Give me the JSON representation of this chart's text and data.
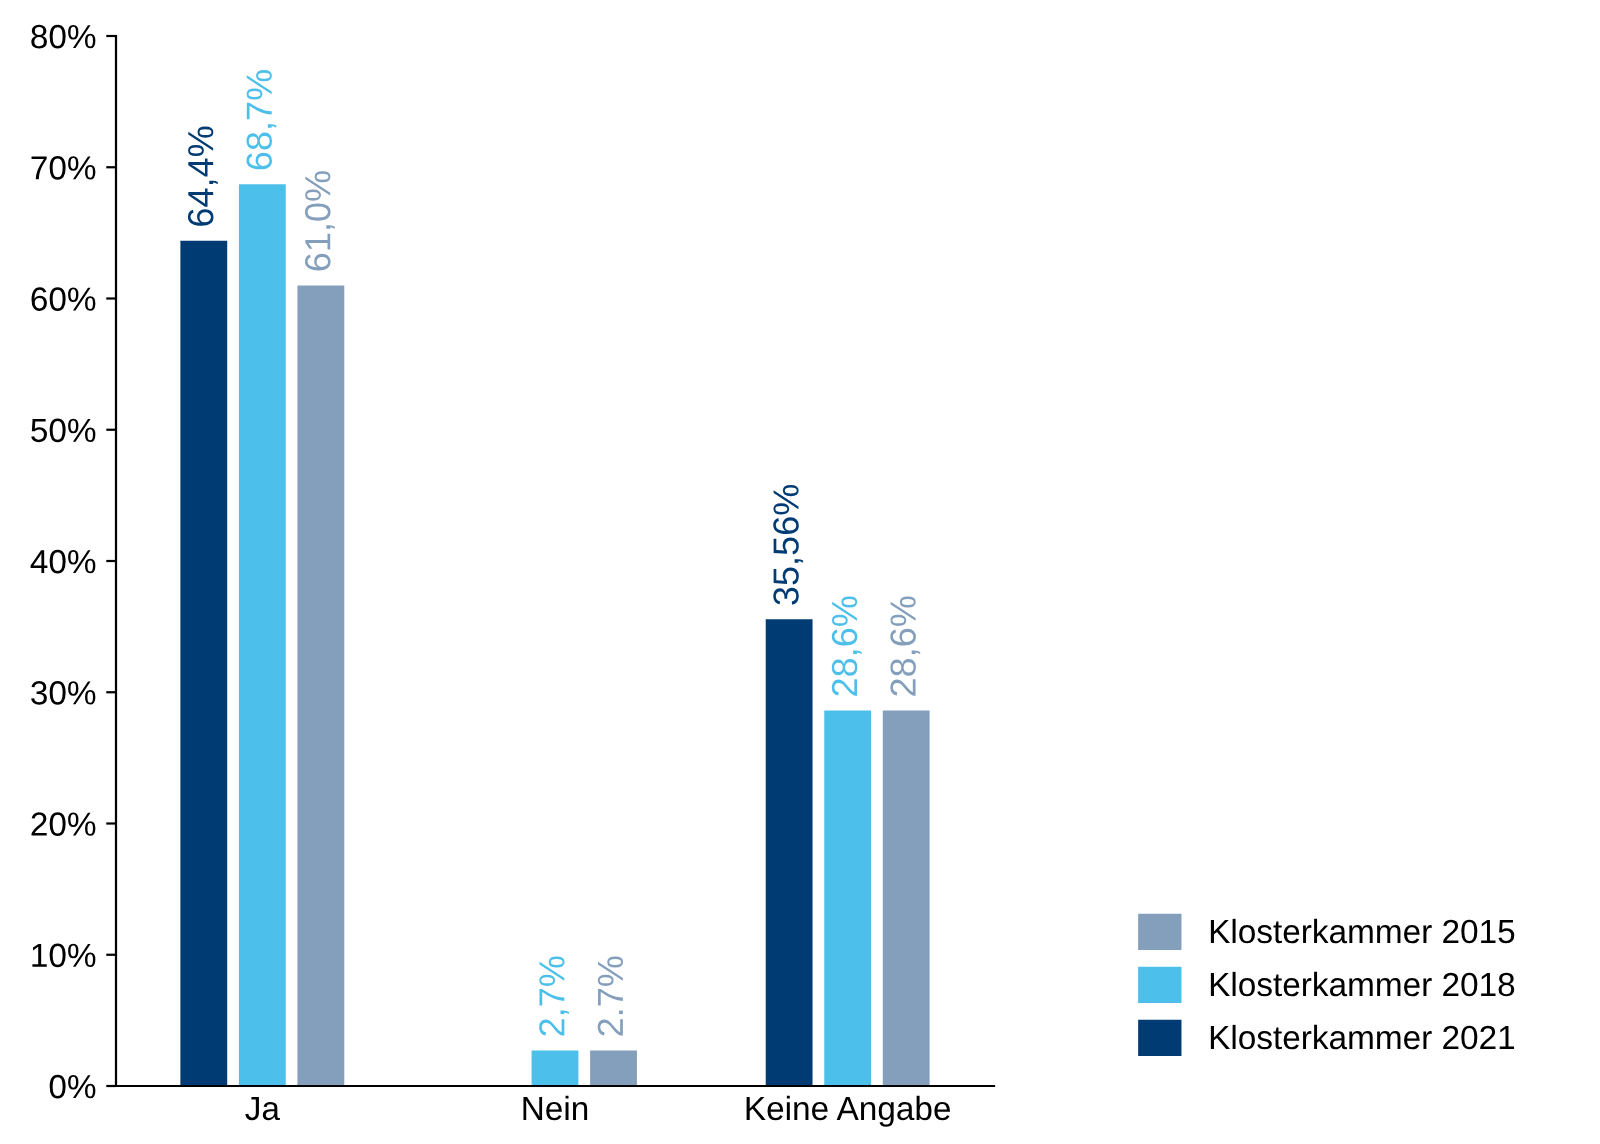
{
  "chart_data": {
    "type": "bar",
    "categories": [
      "Ja",
      "Nein",
      "Keine Angabe"
    ],
    "series": [
      {
        "name": "Klosterkammer 2021",
        "color": "#003b73",
        "values": [
          64.4,
          null,
          35.56
        ],
        "value_labels": [
          "64,4%",
          null,
          "35,56%"
        ]
      },
      {
        "name": "Klosterkammer 2018",
        "color": "#4cc0ea",
        "values": [
          68.7,
          2.7,
          28.6
        ],
        "value_labels": [
          "68,7%",
          "2,7%",
          "28,6%"
        ]
      },
      {
        "name": "Klosterkammer 2015",
        "color": "#849fbc",
        "values": [
          61.0,
          2.7,
          28.6
        ],
        "value_labels": [
          "61,0%",
          "2.7%",
          "28,6%"
        ]
      }
    ],
    "ylim": [
      0,
      80
    ],
    "yticks": [
      {
        "value": 0,
        "label": "0%"
      },
      {
        "value": 10,
        "label": "10%"
      },
      {
        "value": 20,
        "label": "20%"
      },
      {
        "value": 30,
        "label": "30%"
      },
      {
        "value": 40,
        "label": "40%"
      },
      {
        "value": 50,
        "label": "50%"
      },
      {
        "value": 60,
        "label": "60%"
      },
      {
        "value": 70,
        "label": "70%"
      },
      {
        "value": 80,
        "label": "80%"
      }
    ],
    "grid": false,
    "legend": "bottom right"
  }
}
